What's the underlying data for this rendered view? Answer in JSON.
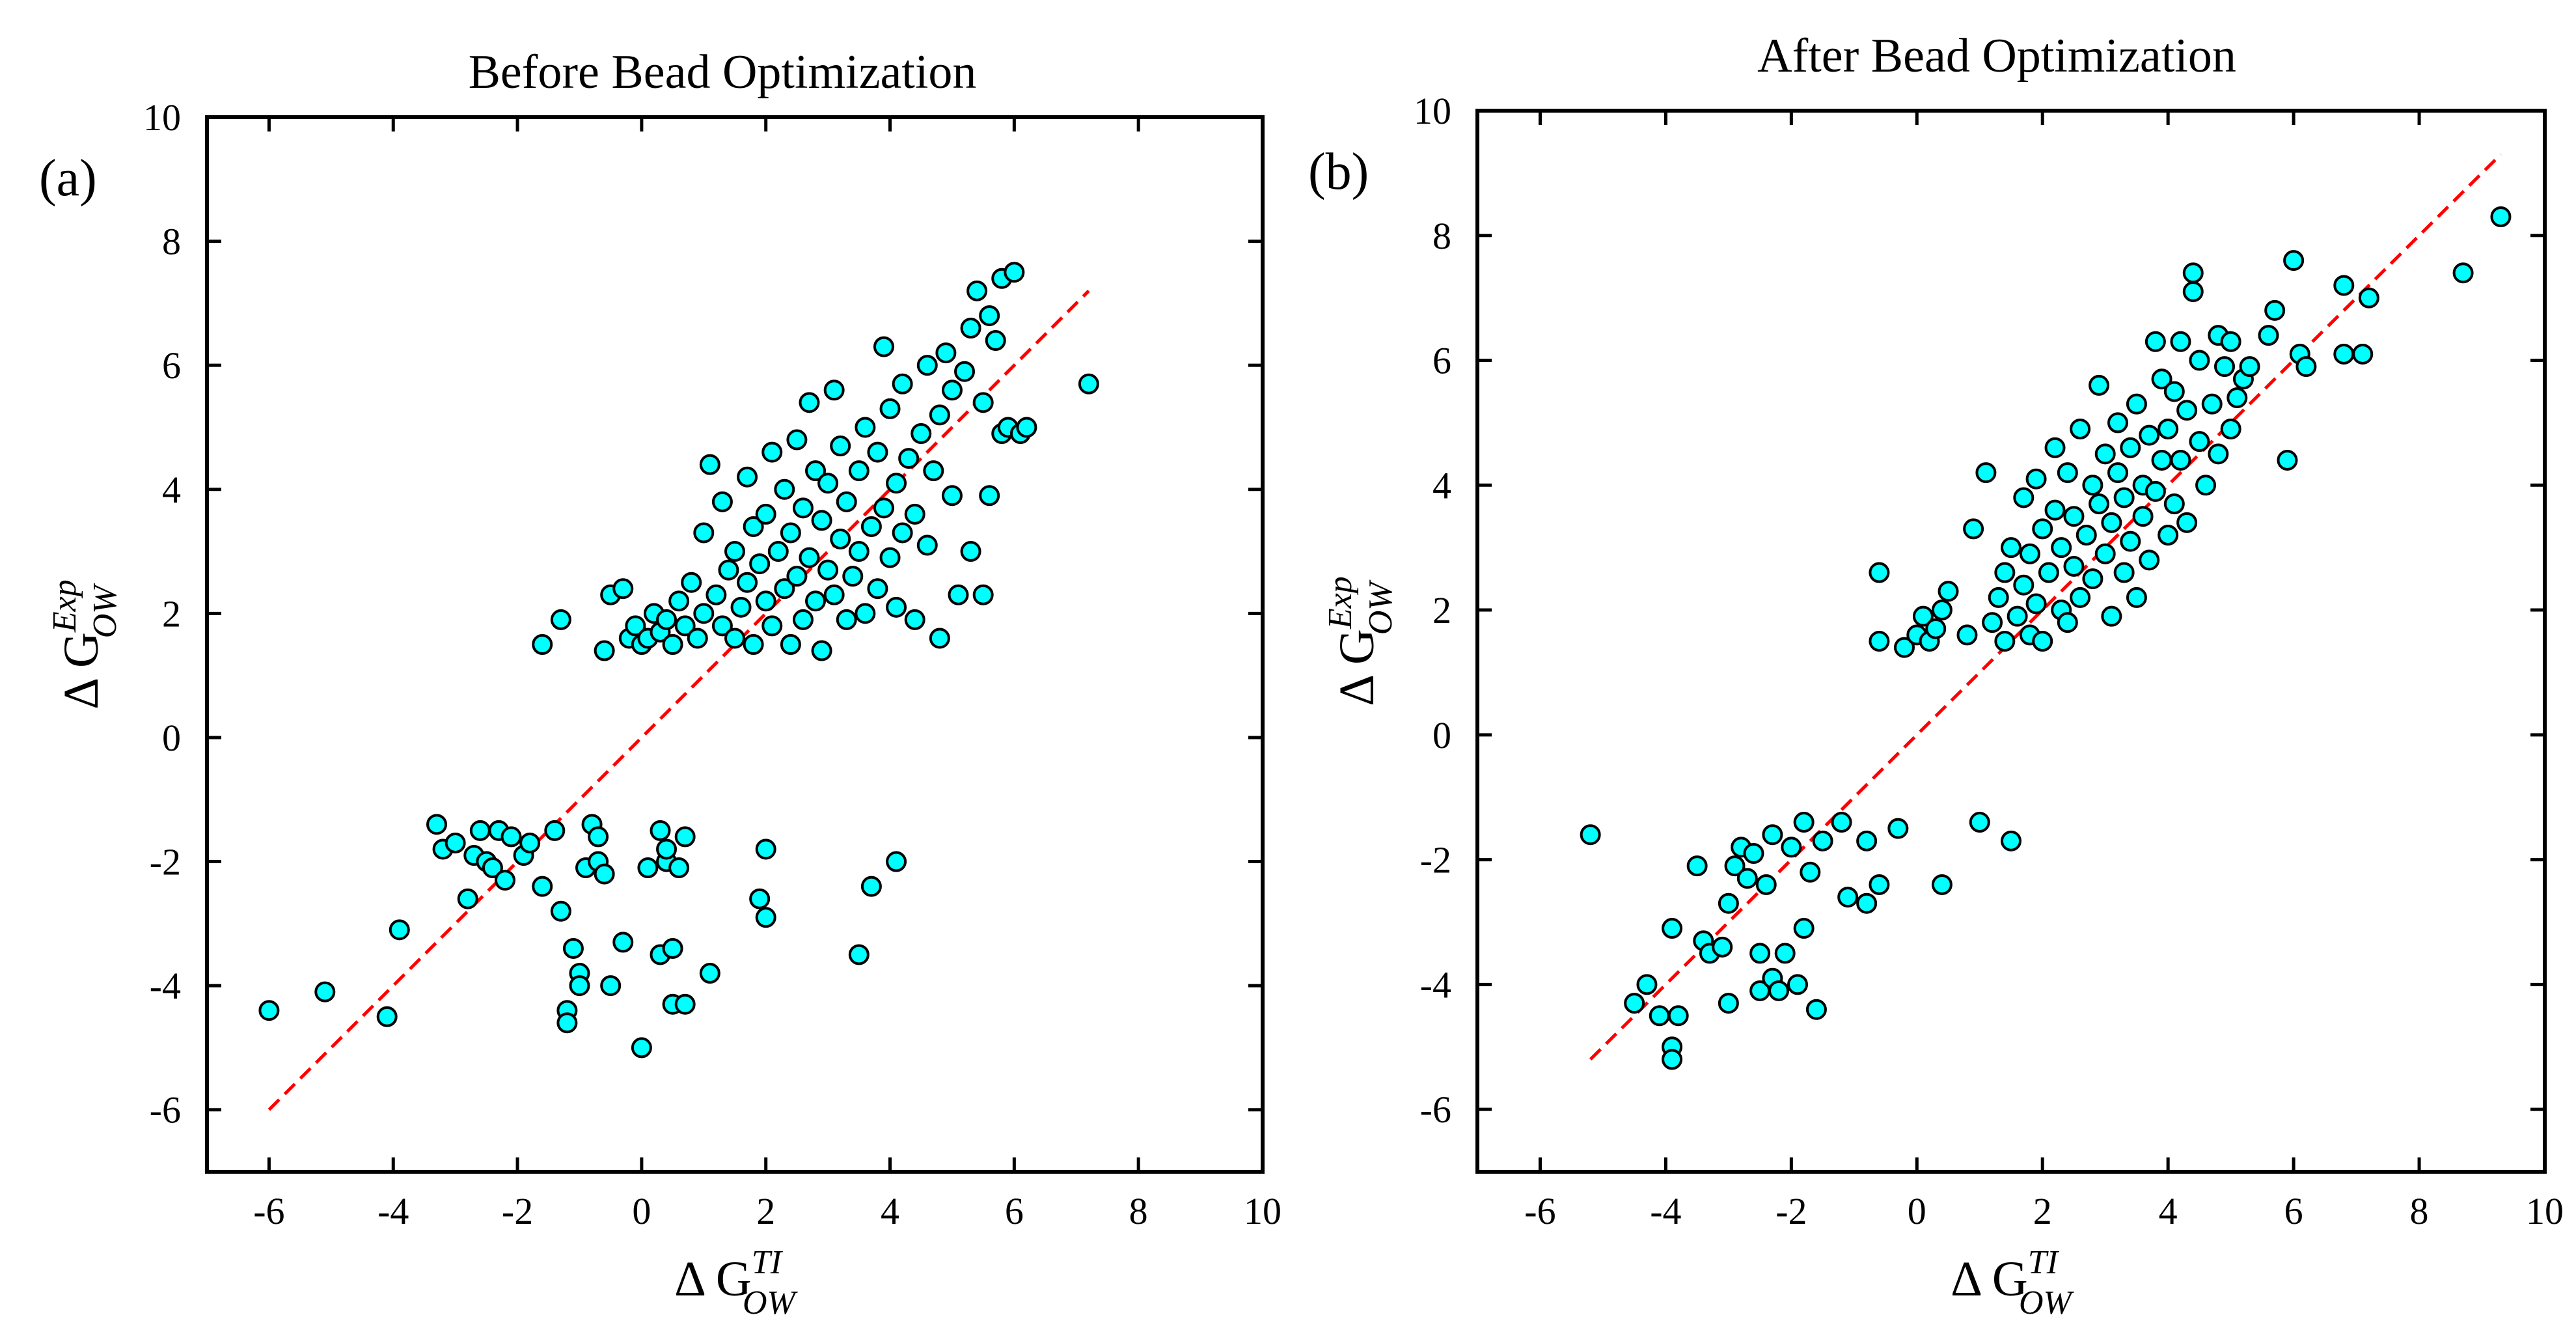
{
  "chart_data": [
    {
      "type": "scatter",
      "panel_label": "(a)",
      "title": "Before Bead Optimization",
      "xlabel": {
        "prefix": "Δ G",
        "sub": "OW",
        "sup": "TI"
      },
      "ylabel": {
        "prefix": "Δ G",
        "sub": "OW",
        "sup": "Exp"
      },
      "xlim": [
        -7,
        10
      ],
      "ylim": [
        -7,
        10
      ],
      "xticks": [
        "-6",
        "-4",
        "-2",
        "0",
        "2",
        "4",
        "6",
        "8",
        "10"
      ],
      "yticks": [
        "-6",
        "-4",
        "-2",
        "0",
        "2",
        "4",
        "6",
        "8",
        "10"
      ],
      "fit_line": {
        "x": [
          -6.0,
          7.2
        ],
        "y": [
          -6.0,
          7.2
        ]
      },
      "marker_color": "#00ffff",
      "line_color": "#ff0000",
      "points": [
        [
          -6.0,
          -4.4
        ],
        [
          -5.1,
          -4.1
        ],
        [
          -4.1,
          -4.5
        ],
        [
          -3.9,
          -3.1
        ],
        [
          -3.3,
          -1.4
        ],
        [
          -3.2,
          -1.8
        ],
        [
          -3.0,
          -1.7
        ],
        [
          -2.8,
          -2.6
        ],
        [
          -2.7,
          -1.9
        ],
        [
          -2.6,
          -1.5
        ],
        [
          -2.5,
          -2.0
        ],
        [
          -2.4,
          -2.1
        ],
        [
          -2.3,
          -1.5
        ],
        [
          -2.2,
          -2.3
        ],
        [
          -2.1,
          -1.6
        ],
        [
          -1.9,
          -1.9
        ],
        [
          -1.8,
          -1.7
        ],
        [
          -1.6,
          -2.4
        ],
        [
          -1.4,
          -1.5
        ],
        [
          -1.3,
          -2.8
        ],
        [
          -1.2,
          -4.4
        ],
        [
          -1.2,
          -4.6
        ],
        [
          -1.1,
          -3.4
        ],
        [
          -1.0,
          -3.8
        ],
        [
          -1.0,
          -4.0
        ],
        [
          -0.9,
          -2.1
        ],
        [
          -0.8,
          -1.4
        ],
        [
          -0.7,
          -2.0
        ],
        [
          -0.7,
          -1.6
        ],
        [
          -0.6,
          -2.2
        ],
        [
          -0.5,
          -4.0
        ],
        [
          -0.3,
          -3.3
        ],
        [
          0.0,
          -5.0
        ],
        [
          0.1,
          -2.1
        ],
        [
          0.3,
          -1.5
        ],
        [
          0.3,
          -3.5
        ],
        [
          0.4,
          -2.0
        ],
        [
          0.4,
          -1.8
        ],
        [
          0.5,
          -4.3
        ],
        [
          0.5,
          -3.4
        ],
        [
          0.6,
          -2.1
        ],
        [
          0.7,
          -1.6
        ],
        [
          0.7,
          -4.3
        ],
        [
          1.1,
          -3.8
        ],
        [
          1.9,
          -2.6
        ],
        [
          2.0,
          -1.8
        ],
        [
          2.0,
          -2.9
        ],
        [
          3.5,
          -3.5
        ],
        [
          3.7,
          -2.4
        ],
        [
          4.1,
          -2.0
        ],
        [
          -1.6,
          1.5
        ],
        [
          -1.3,
          1.9
        ],
        [
          -0.6,
          1.4
        ],
        [
          -0.5,
          2.3
        ],
        [
          -0.3,
          2.4
        ],
        [
          -0.2,
          1.6
        ],
        [
          -0.1,
          1.8
        ],
        [
          0.0,
          1.5
        ],
        [
          0.1,
          1.6
        ],
        [
          0.2,
          2.0
        ],
        [
          0.3,
          1.7
        ],
        [
          0.4,
          1.9
        ],
        [
          0.5,
          1.5
        ],
        [
          0.6,
          2.2
        ],
        [
          0.7,
          1.8
        ],
        [
          0.8,
          2.5
        ],
        [
          0.9,
          1.6
        ],
        [
          1.0,
          2.0
        ],
        [
          1.0,
          3.3
        ],
        [
          1.1,
          4.4
        ],
        [
          1.2,
          2.3
        ],
        [
          1.3,
          1.8
        ],
        [
          1.3,
          3.8
        ],
        [
          1.4,
          2.7
        ],
        [
          1.5,
          1.6
        ],
        [
          1.5,
          3.0
        ],
        [
          1.6,
          2.1
        ],
        [
          1.7,
          4.2
        ],
        [
          1.7,
          2.5
        ],
        [
          1.8,
          1.5
        ],
        [
          1.8,
          3.4
        ],
        [
          1.9,
          2.8
        ],
        [
          2.0,
          2.2
        ],
        [
          2.0,
          3.6
        ],
        [
          2.1,
          4.6
        ],
        [
          2.1,
          1.8
        ],
        [
          2.2,
          3.0
        ],
        [
          2.3,
          2.4
        ],
        [
          2.3,
          4.0
        ],
        [
          2.4,
          1.5
        ],
        [
          2.4,
          3.3
        ],
        [
          2.5,
          2.6
        ],
        [
          2.5,
          4.8
        ],
        [
          2.6,
          1.9
        ],
        [
          2.6,
          3.7
        ],
        [
          2.7,
          2.9
        ],
        [
          2.7,
          5.4
        ],
        [
          2.8,
          2.2
        ],
        [
          2.8,
          4.3
        ],
        [
          2.9,
          1.4
        ],
        [
          2.9,
          3.5
        ],
        [
          3.0,
          2.7
        ],
        [
          3.0,
          4.1
        ],
        [
          3.1,
          5.6
        ],
        [
          3.1,
          2.3
        ],
        [
          3.2,
          3.2
        ],
        [
          3.2,
          4.7
        ],
        [
          3.3,
          1.9
        ],
        [
          3.3,
          3.8
        ],
        [
          3.4,
          2.6
        ],
        [
          3.5,
          4.3
        ],
        [
          3.5,
          3.0
        ],
        [
          3.6,
          2.0
        ],
        [
          3.6,
          5.0
        ],
        [
          3.7,
          3.4
        ],
        [
          3.8,
          2.4
        ],
        [
          3.8,
          4.6
        ],
        [
          3.9,
          6.3
        ],
        [
          3.9,
          3.7
        ],
        [
          4.0,
          2.9
        ],
        [
          4.0,
          5.3
        ],
        [
          4.1,
          4.1
        ],
        [
          4.1,
          2.1
        ],
        [
          4.2,
          3.3
        ],
        [
          4.2,
          5.7
        ],
        [
          4.3,
          4.5
        ],
        [
          4.4,
          3.6
        ],
        [
          4.4,
          1.9
        ],
        [
          4.5,
          4.9
        ],
        [
          4.6,
          3.1
        ],
        [
          4.6,
          6.0
        ],
        [
          4.7,
          4.3
        ],
        [
          4.8,
          1.6
        ],
        [
          4.8,
          5.2
        ],
        [
          4.9,
          6.2
        ],
        [
          5.0,
          3.9
        ],
        [
          5.0,
          5.6
        ],
        [
          5.1,
          2.3
        ],
        [
          5.2,
          5.9
        ],
        [
          5.3,
          3.0
        ],
        [
          5.3,
          6.6
        ],
        [
          5.4,
          7.2
        ],
        [
          5.5,
          2.3
        ],
        [
          5.5,
          5.4
        ],
        [
          5.6,
          3.9
        ],
        [
          5.6,
          6.8
        ],
        [
          5.7,
          6.4
        ],
        [
          5.8,
          4.9
        ],
        [
          5.8,
          7.4
        ],
        [
          5.9,
          5.0
        ],
        [
          6.0,
          7.5
        ],
        [
          6.1,
          4.9
        ],
        [
          6.2,
          5.0
        ],
        [
          7.2,
          5.7
        ]
      ]
    },
    {
      "type": "scatter",
      "panel_label": "(b)",
      "title": "After Bead Optimization",
      "xlabel": {
        "prefix": "Δ G",
        "sub": "OW",
        "sup": "TI"
      },
      "ylabel": {
        "prefix": "Δ G",
        "sub": "OW",
        "sup": "Exp"
      },
      "xlim": [
        -7,
        10
      ],
      "ylim": [
        -7,
        10
      ],
      "xticks": [
        "-6",
        "-4",
        "-2",
        "0",
        "2",
        "4",
        "6",
        "8",
        "10"
      ],
      "yticks": [
        "-6",
        "-4",
        "-2",
        "0",
        "2",
        "4",
        "6",
        "8",
        "10"
      ],
      "fit_line": {
        "x": [
          -5.2,
          9.3
        ],
        "y": [
          -5.2,
          9.3
        ]
      },
      "marker_color": "#00ffff",
      "line_color": "#ff0000",
      "points": [
        [
          -5.2,
          -1.6
        ],
        [
          -4.5,
          -4.3
        ],
        [
          -4.3,
          -4.0
        ],
        [
          -4.1,
          -4.5
        ],
        [
          -3.9,
          -5.0
        ],
        [
          -3.9,
          -5.2
        ],
        [
          -3.9,
          -3.1
        ],
        [
          -3.8,
          -4.5
        ],
        [
          -3.5,
          -2.1
        ],
        [
          -3.4,
          -3.3
        ],
        [
          -3.3,
          -3.5
        ],
        [
          -3.1,
          -3.4
        ],
        [
          -3.0,
          -2.7
        ],
        [
          -3.0,
          -4.3
        ],
        [
          -2.9,
          -2.1
        ],
        [
          -2.8,
          -1.8
        ],
        [
          -2.7,
          -2.3
        ],
        [
          -2.6,
          -1.9
        ],
        [
          -2.5,
          -3.5
        ],
        [
          -2.5,
          -4.1
        ],
        [
          -2.4,
          -2.4
        ],
        [
          -2.3,
          -1.6
        ],
        [
          -2.3,
          -3.9
        ],
        [
          -2.2,
          -4.1
        ],
        [
          -2.1,
          -3.5
        ],
        [
          -2.0,
          -1.8
        ],
        [
          -1.9,
          -4.0
        ],
        [
          -1.8,
          -3.1
        ],
        [
          -1.8,
          -1.4
        ],
        [
          -1.7,
          -2.2
        ],
        [
          -1.6,
          -4.4
        ],
        [
          -1.5,
          -1.7
        ],
        [
          -1.2,
          -1.4
        ],
        [
          -1.1,
          -2.6
        ],
        [
          -0.8,
          -2.7
        ],
        [
          -0.8,
          -1.7
        ],
        [
          -0.6,
          -2.4
        ],
        [
          -0.3,
          -1.5
        ],
        [
          0.4,
          -2.4
        ],
        [
          1.0,
          -1.4
        ],
        [
          1.5,
          -1.7
        ],
        [
          -0.6,
          2.6
        ],
        [
          -0.6,
          1.5
        ],
        [
          -0.2,
          1.4
        ],
        [
          0.0,
          1.6
        ],
        [
          0.1,
          1.9
        ],
        [
          0.2,
          1.5
        ],
        [
          0.3,
          1.7
        ],
        [
          0.4,
          2.0
        ],
        [
          0.5,
          2.3
        ],
        [
          0.8,
          1.6
        ],
        [
          0.9,
          3.3
        ],
        [
          1.1,
          4.2
        ],
        [
          1.2,
          1.8
        ],
        [
          1.3,
          2.2
        ],
        [
          1.4,
          2.6
        ],
        [
          1.4,
          1.5
        ],
        [
          1.5,
          3.0
        ],
        [
          1.6,
          1.9
        ],
        [
          1.7,
          2.4
        ],
        [
          1.7,
          3.8
        ],
        [
          1.8,
          1.6
        ],
        [
          1.8,
          2.9
        ],
        [
          1.9,
          2.1
        ],
        [
          1.9,
          4.1
        ],
        [
          2.0,
          3.3
        ],
        [
          2.0,
          1.5
        ],
        [
          2.1,
          2.6
        ],
        [
          2.2,
          3.6
        ],
        [
          2.2,
          4.6
        ],
        [
          2.3,
          2.0
        ],
        [
          2.3,
          3.0
        ],
        [
          2.4,
          4.2
        ],
        [
          2.4,
          1.8
        ],
        [
          2.5,
          2.7
        ],
        [
          2.5,
          3.5
        ],
        [
          2.6,
          4.9
        ],
        [
          2.6,
          2.2
        ],
        [
          2.7,
          3.2
        ],
        [
          2.8,
          4.0
        ],
        [
          2.8,
          2.5
        ],
        [
          2.9,
          3.7
        ],
        [
          2.9,
          5.6
        ],
        [
          3.0,
          2.9
        ],
        [
          3.0,
          4.5
        ],
        [
          3.1,
          1.9
        ],
        [
          3.1,
          3.4
        ],
        [
          3.2,
          4.2
        ],
        [
          3.2,
          5.0
        ],
        [
          3.3,
          2.6
        ],
        [
          3.3,
          3.8
        ],
        [
          3.4,
          4.6
        ],
        [
          3.4,
          3.1
        ],
        [
          3.5,
          5.3
        ],
        [
          3.5,
          2.2
        ],
        [
          3.6,
          4.0
        ],
        [
          3.6,
          3.5
        ],
        [
          3.7,
          4.8
        ],
        [
          3.7,
          2.8
        ],
        [
          3.8,
          6.3
        ],
        [
          3.8,
          3.9
        ],
        [
          3.9,
          4.4
        ],
        [
          3.9,
          5.7
        ],
        [
          4.0,
          3.2
        ],
        [
          4.0,
          4.9
        ],
        [
          4.1,
          5.5
        ],
        [
          4.1,
          3.7
        ],
        [
          4.2,
          6.3
        ],
        [
          4.2,
          4.4
        ],
        [
          4.3,
          3.4
        ],
        [
          4.3,
          5.2
        ],
        [
          4.4,
          7.4
        ],
        [
          4.4,
          7.1
        ],
        [
          4.5,
          4.7
        ],
        [
          4.5,
          6.0
        ],
        [
          4.6,
          4.0
        ],
        [
          4.7,
          5.3
        ],
        [
          4.8,
          6.4
        ],
        [
          4.8,
          4.5
        ],
        [
          4.9,
          5.9
        ],
        [
          5.0,
          4.9
        ],
        [
          5.0,
          6.3
        ],
        [
          5.1,
          5.4
        ],
        [
          5.2,
          5.7
        ],
        [
          5.3,
          5.9
        ],
        [
          5.6,
          6.4
        ],
        [
          5.7,
          6.8
        ],
        [
          5.9,
          4.4
        ],
        [
          6.0,
          7.6
        ],
        [
          6.1,
          6.1
        ],
        [
          6.2,
          5.9
        ],
        [
          6.8,
          7.2
        ],
        [
          6.8,
          6.1
        ],
        [
          7.1,
          6.1
        ],
        [
          7.2,
          7.0
        ],
        [
          8.7,
          7.4
        ],
        [
          9.3,
          8.3
        ]
      ]
    }
  ]
}
